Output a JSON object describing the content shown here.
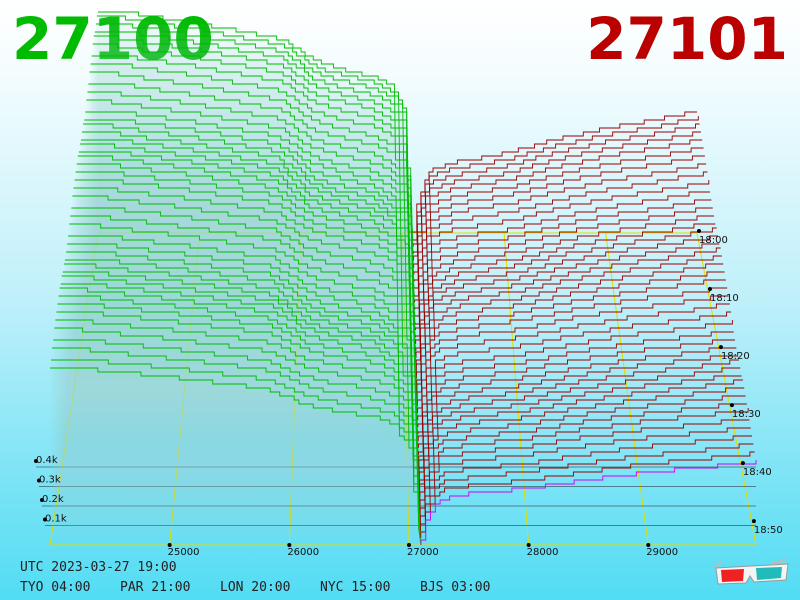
{
  "header": {
    "bid_price": "27100",
    "ask_price": "27101",
    "bid_color": "#00bb00",
    "ask_color": "#bb0000"
  },
  "chart_data": {
    "type": "area",
    "x_tick_labels": [
      "25000",
      "26000",
      "27000",
      "28000",
      "29000"
    ],
    "y_tick_labels": [
      "0.1k",
      "0.2k",
      "0.3k",
      "0.4k"
    ],
    "time_tick_labels": [
      "18:00",
      "18:10",
      "18:20",
      "18:30",
      "18:40",
      "18:50"
    ],
    "x_range": [
      24000,
      29900
    ],
    "y_range": [
      0,
      500
    ],
    "series": [
      {
        "color": "#00bb00",
        "values": []
      },
      {
        "color": "#990000",
        "values": []
      },
      {
        "color": "#cc00ff",
        "values": []
      }
    ],
    "bid_depth_profile": {
      "price": [
        24200,
        24500,
        25000,
        25400,
        25800,
        26000,
        26100,
        26300,
        26500,
        26700,
        26900,
        27000,
        27050,
        27100
      ],
      "cumulative_volume": [
        440,
        430,
        415,
        400,
        385,
        360,
        345,
        330,
        320,
        310,
        290,
        250,
        100,
        0
      ]
    },
    "ask_depth_profile": {
      "price": [
        27100,
        27150,
        27250,
        27500,
        28000,
        28500,
        29000,
        29500,
        29900
      ],
      "cumulative_volume": [
        0,
        60,
        110,
        125,
        140,
        165,
        185,
        200,
        215
      ]
    }
  },
  "clock": {
    "utc": "UTC 2023-03-27 19:00",
    "zones": [
      {
        "label": "TYO 04:00"
      },
      {
        "label": "PAR 21:00"
      },
      {
        "label": "LON 20:00"
      },
      {
        "label": "NYC 15:00"
      },
      {
        "label": "BJS 03:00"
      }
    ]
  },
  "icons": {
    "glasses": "3d-glasses-icon"
  }
}
